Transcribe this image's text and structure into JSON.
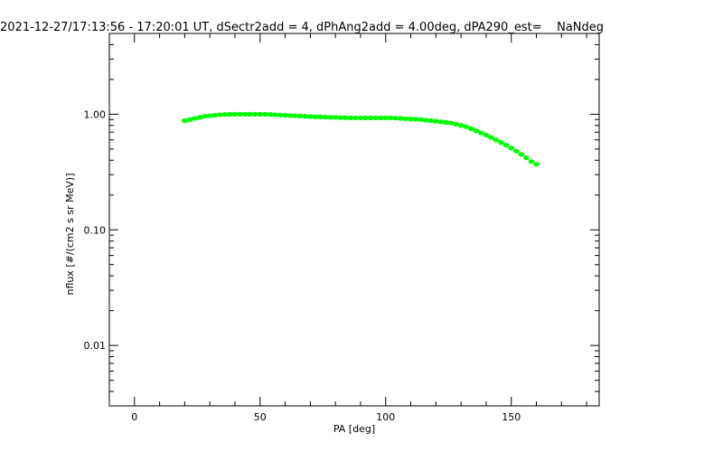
{
  "chart_data": {
    "type": "scatter",
    "title": "2021-12-27/17:13:56 - 17:20:01 UT, dSectr2add = 4, dPhAng2add = 4.00deg, dPA290_est=    NaNdeg",
    "xlabel": "PA [deg]",
    "ylabel": "nflux [#/(cm2 s sr MeV)]",
    "xlim": [
      -10,
      185
    ],
    "ylim": [
      0.003,
      5
    ],
    "yscale": "log",
    "x_ticks": [
      0,
      50,
      100,
      150
    ],
    "x_tick_labels": [
      "0",
      "50",
      "100",
      "150"
    ],
    "y_ticks": [
      0.01,
      0.1,
      1.0
    ],
    "y_tick_labels": [
      "0.01",
      "0.10",
      "1.00"
    ],
    "grid": false,
    "series": [
      {
        "color": "#00ff00",
        "x": [
          20,
          22,
          24,
          26,
          28,
          30,
          32,
          34,
          36,
          38,
          40,
          42,
          44,
          46,
          48,
          50,
          52,
          54,
          56,
          58,
          60,
          62,
          64,
          66,
          68,
          70,
          72,
          74,
          76,
          78,
          80,
          82,
          84,
          86,
          88,
          90,
          92,
          94,
          96,
          98,
          100,
          102,
          104,
          106,
          108,
          110,
          112,
          114,
          116,
          118,
          120,
          122,
          124,
          126,
          128,
          130,
          132,
          134,
          136,
          138,
          140,
          142,
          144,
          146,
          148,
          150,
          152,
          154,
          156,
          158,
          160
        ],
        "y": [
          0.88,
          0.9,
          0.92,
          0.94,
          0.96,
          0.97,
          0.98,
          0.99,
          0.995,
          1.0,
          1.0,
          1.0,
          1.0,
          1.0,
          1.0,
          1.0,
          1.0,
          0.995,
          0.99,
          0.985,
          0.98,
          0.975,
          0.97,
          0.965,
          0.96,
          0.955,
          0.95,
          0.95,
          0.945,
          0.94,
          0.94,
          0.935,
          0.935,
          0.93,
          0.93,
          0.93,
          0.93,
          0.93,
          0.93,
          0.93,
          0.93,
          0.93,
          0.925,
          0.92,
          0.915,
          0.91,
          0.905,
          0.9,
          0.89,
          0.88,
          0.87,
          0.86,
          0.85,
          0.84,
          0.82,
          0.8,
          0.78,
          0.75,
          0.72,
          0.69,
          0.66,
          0.63,
          0.6,
          0.57,
          0.54,
          0.51,
          0.48,
          0.45,
          0.42,
          0.39,
          0.37
        ]
      }
    ]
  }
}
